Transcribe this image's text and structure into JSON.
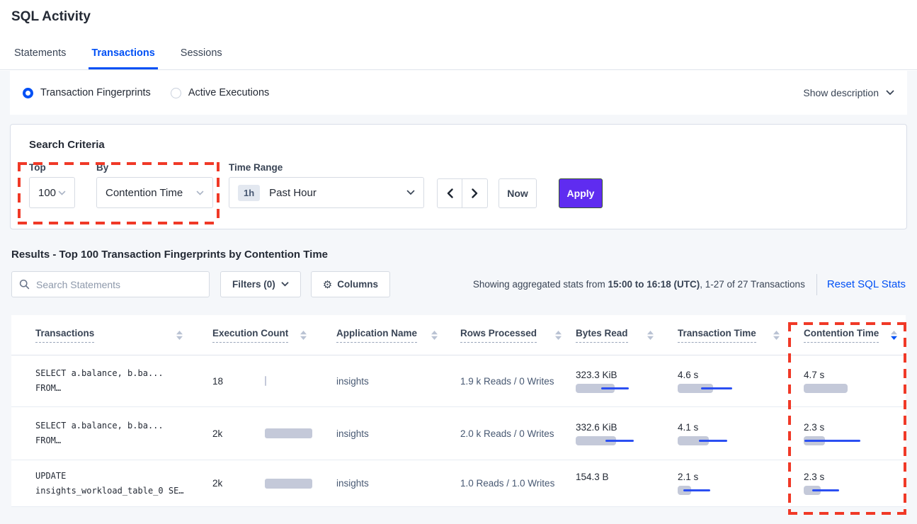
{
  "header": {
    "title": "SQL Activity",
    "tabs": [
      {
        "label": "Statements",
        "active": false
      },
      {
        "label": "Transactions",
        "active": true
      },
      {
        "label": "Sessions",
        "active": false
      }
    ]
  },
  "view_bar": {
    "options": [
      {
        "label": "Transaction Fingerprints",
        "selected": true
      },
      {
        "label": "Active Executions",
        "selected": false
      }
    ],
    "show_description_label": "Show description"
  },
  "search_criteria": {
    "title": "Search Criteria",
    "top": {
      "label": "Top",
      "value": "100"
    },
    "by": {
      "label": "By",
      "value": "Contention Time"
    },
    "time_range": {
      "label": "Time Range",
      "badge": "1h",
      "value": "Past Hour"
    },
    "now_label": "Now",
    "apply_label": "Apply"
  },
  "results_header": {
    "heading": "Results - Top 100 Transaction Fingerprints by Contention Time",
    "search_placeholder": "Search Statements",
    "filters_label": "Filters (0)",
    "columns_label": "Columns",
    "gear_icon": "⚙",
    "stats_prefix": "Showing aggregated stats from ",
    "stats_bold": "15:00 to 16:18 (UTC)",
    "stats_suffix": ", 1-27 of 27 Transactions",
    "reset_label": "Reset SQL Stats"
  },
  "table": {
    "columns": [
      {
        "label": "Transactions",
        "sort": "none"
      },
      {
        "label": "Execution Count",
        "sort": "none"
      },
      {
        "label": "Application Name",
        "sort": "none"
      },
      {
        "label": "Rows Processed",
        "sort": "none"
      },
      {
        "label": "Bytes Read",
        "sort": "none"
      },
      {
        "label": "Transaction Time",
        "sort": "none"
      },
      {
        "label": "Contention Time",
        "sort": "desc"
      }
    ],
    "rows": [
      {
        "fingerprint_line1": "SELECT a.balance, b.ba...",
        "fingerprint_line2": "FROM…",
        "execution_count": "18",
        "execution_bar": {
          "bar": 2,
          "line_start": null,
          "line_end": null
        },
        "application_name": "insights",
        "rows_processed": "1.9 k Reads / 0 Writes",
        "bytes_read": {
          "value": "323.3 KiB",
          "bar": 55,
          "line_start": 36,
          "line_end": 75
        },
        "transaction_time": {
          "value": "4.6 s",
          "bar": 50,
          "line_start": 33,
          "line_end": 77
        },
        "contention_time": {
          "value": "4.7 s",
          "bar": 62,
          "line_start": null,
          "line_end": null
        }
      },
      {
        "fingerprint_line1": "SELECT a.balance, b.ba...",
        "fingerprint_line2": "FROM…",
        "execution_count": "2k",
        "execution_bar": {
          "bar": 67,
          "line_start": null,
          "line_end": null
        },
        "application_name": "insights",
        "rows_processed": "2.0 k Reads / 0 Writes",
        "bytes_read": {
          "value": "332.6 KiB",
          "bar": 57,
          "line_start": 42,
          "line_end": 82
        },
        "transaction_time": {
          "value": "4.1 s",
          "bar": 44,
          "line_start": 30,
          "line_end": 70
        },
        "contention_time": {
          "value": "2.3 s",
          "bar": 30,
          "line_start": 1,
          "line_end": 80
        }
      },
      {
        "fingerprint_line1": "UPDATE",
        "fingerprint_line2": "insights_workload_table_0 SE…",
        "execution_count": "2k",
        "execution_bar": {
          "bar": 67,
          "line_start": null,
          "line_end": null
        },
        "application_name": "insights",
        "rows_processed": "1.0 Reads / 1.0 Writes",
        "bytes_read": {
          "value": "154.3 B",
          "bar": null,
          "line_start": null,
          "line_end": null
        },
        "transaction_time": {
          "value": "2.1 s",
          "bar": 19,
          "line_start": 8,
          "line_end": 46
        },
        "contention_time": {
          "value": "2.3 s",
          "bar": 24,
          "line_start": 12,
          "line_end": 50
        }
      }
    ]
  },
  "colors": {
    "accent_blue": "#0050f5",
    "apply_purple": "#5f2cf0",
    "annotation_red": "#f03927",
    "bar_gray": "#c4c9d9",
    "bar_blue": "#2b4ff2"
  }
}
